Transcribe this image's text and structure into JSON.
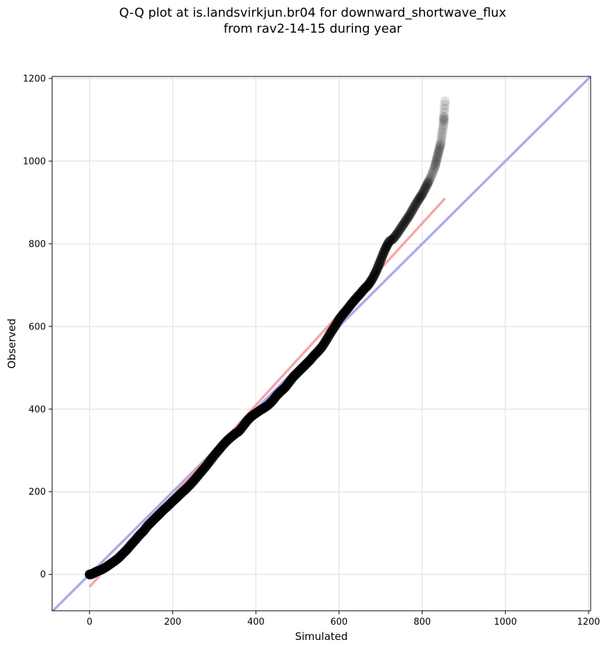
{
  "title_line1": "Q-Q plot at is.landsvirkjun.br04 for downward_shortwave_flux",
  "title_line2": "from rav2-14-15 during year",
  "chart_data": {
    "type": "scatter",
    "title": "Q-Q plot at is.landsvirkjun.br04 for downward_shortwave_flux\nfrom rav2-14-15 during year",
    "xlabel": "Simulated",
    "ylabel": "Observed",
    "xlim": [
      -90,
      1205
    ],
    "ylim": [
      -88,
      1205
    ],
    "x_ticks": [
      0,
      200,
      400,
      600,
      800,
      1000,
      1200
    ],
    "y_ticks": [
      0,
      200,
      400,
      600,
      800,
      1000,
      1200
    ],
    "grid": true,
    "quantile_points": [
      [
        0,
        0
      ],
      [
        2,
        0
      ],
      [
        5,
        1
      ],
      [
        10,
        3
      ],
      [
        15,
        6
      ],
      [
        20,
        8
      ],
      [
        30,
        12
      ],
      [
        40,
        18
      ],
      [
        50,
        25
      ],
      [
        60,
        32
      ],
      [
        70,
        40
      ],
      [
        80,
        50
      ],
      [
        90,
        60
      ],
      [
        100,
        72
      ],
      [
        110,
        83
      ],
      [
        120,
        95
      ],
      [
        130,
        105
      ],
      [
        140,
        118
      ],
      [
        150,
        128
      ],
      [
        160,
        138
      ],
      [
        170,
        148
      ],
      [
        180,
        158
      ],
      [
        190,
        167
      ],
      [
        200,
        177
      ],
      [
        210,
        186
      ],
      [
        220,
        196
      ],
      [
        230,
        205
      ],
      [
        240,
        215
      ],
      [
        250,
        226
      ],
      [
        260,
        238
      ],
      [
        270,
        250
      ],
      [
        280,
        262
      ],
      [
        290,
        275
      ],
      [
        300,
        288
      ],
      [
        310,
        300
      ],
      [
        320,
        312
      ],
      [
        330,
        323
      ],
      [
        340,
        332
      ],
      [
        350,
        340
      ],
      [
        360,
        347
      ],
      [
        370,
        360
      ],
      [
        380,
        373
      ],
      [
        390,
        383
      ],
      [
        400,
        390
      ],
      [
        410,
        397
      ],
      [
        420,
        403
      ],
      [
        430,
        410
      ],
      [
        440,
        420
      ],
      [
        450,
        433
      ],
      [
        460,
        443
      ],
      [
        470,
        452
      ],
      [
        480,
        465
      ],
      [
        490,
        478
      ],
      [
        500,
        488
      ],
      [
        510,
        498
      ],
      [
        520,
        508
      ],
      [
        530,
        518
      ],
      [
        540,
        530
      ],
      [
        550,
        540
      ],
      [
        560,
        552
      ],
      [
        570,
        568
      ],
      [
        580,
        585
      ],
      [
        590,
        600
      ],
      [
        600,
        617
      ],
      [
        610,
        630
      ],
      [
        620,
        642
      ],
      [
        630,
        655
      ],
      [
        640,
        667
      ],
      [
        650,
        678
      ],
      [
        660,
        690
      ],
      [
        670,
        700
      ],
      [
        680,
        715
      ],
      [
        690,
        735
      ],
      [
        700,
        760
      ],
      [
        710,
        785
      ],
      [
        720,
        805
      ],
      [
        730,
        812
      ],
      [
        740,
        825
      ],
      [
        750,
        840
      ],
      [
        760,
        855
      ],
      [
        770,
        870
      ],
      [
        780,
        888
      ],
      [
        790,
        905
      ],
      [
        800,
        920
      ],
      [
        810,
        940
      ],
      [
        820,
        960
      ],
      [
        830,
        985
      ],
      [
        835,
        1005
      ],
      [
        840,
        1025
      ],
      [
        845,
        1045
      ],
      [
        848,
        1070
      ],
      [
        852,
        1095
      ],
      [
        852,
        1108
      ],
      [
        855,
        1145
      ]
    ],
    "reference_lines": [
      {
        "kind": "identity",
        "points": [
          [
            -90,
            -90
          ],
          [
            1205,
            1205
          ]
        ],
        "color": "#aaaaee"
      },
      {
        "kind": "fit",
        "points": [
          [
            0,
            -30
          ],
          [
            855,
            910
          ]
        ],
        "color": "#f4a6a6"
      }
    ],
    "colors": {
      "points": "#000000",
      "grid": "#e6e6e6"
    }
  }
}
